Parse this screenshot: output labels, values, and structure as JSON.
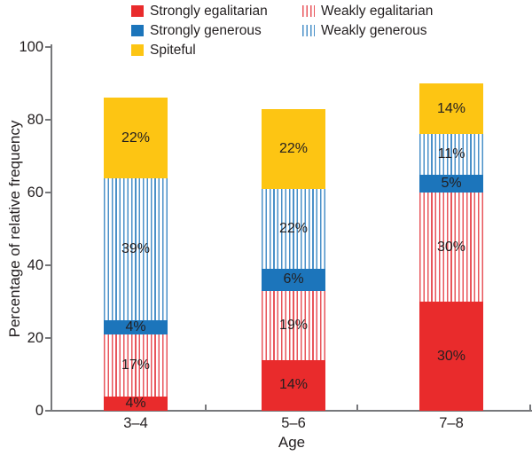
{
  "figure": {
    "ylabel": "Percentage of relative frequency",
    "xlabel": "Age"
  },
  "legend": {
    "items": [
      {
        "label": "Strongly egalitarian",
        "swatch": "solid-red"
      },
      {
        "label": "Weakly egalitarian",
        "swatch": "striped-red"
      },
      {
        "label": "Strongly generous",
        "swatch": "solid-blue"
      },
      {
        "label": "Weakly generous",
        "swatch": "striped-blue"
      },
      {
        "label": "Spiteful",
        "swatch": "solid-yellow"
      }
    ]
  },
  "chart_data": {
    "type": "bar",
    "subtype": "stacked-vertical",
    "title": "",
    "xlabel": "Age",
    "ylabel": "Percentage of relative frequency",
    "ylim": [
      0,
      100
    ],
    "yticks": [
      0,
      20,
      40,
      60,
      80,
      100
    ],
    "grid": false,
    "legend_position": "top",
    "categories": [
      "3–4",
      "5–6",
      "7–8"
    ],
    "series": [
      {
        "name": "Strongly egalitarian",
        "pattern": "solid",
        "color": "#e92b2c",
        "values": [
          4,
          14,
          30
        ]
      },
      {
        "name": "Weakly egalitarian",
        "pattern": "striped",
        "color": "#e92b2c",
        "values": [
          17,
          19,
          30
        ]
      },
      {
        "name": "Strongly generous",
        "pattern": "solid",
        "color": "#1c75bb",
        "values": [
          4,
          6,
          5
        ]
      },
      {
        "name": "Weakly generous",
        "pattern": "striped",
        "color": "#1c75bb",
        "values": [
          39,
          22,
          11
        ]
      },
      {
        "name": "Spiteful",
        "pattern": "solid",
        "color": "#fdc513",
        "values": [
          22,
          22,
          14
        ]
      }
    ],
    "bar_totals": [
      86,
      83,
      90
    ],
    "bar_label_format": "{value}%"
  },
  "colors": {
    "red": "#e92b2c",
    "blue": "#1c75bb",
    "yellow": "#fdc513",
    "red_stripe": "#e8555b",
    "blue_stripe": "#4a90c8",
    "axis": "#77787b",
    "text": "#231f20",
    "background": "#ffffff"
  }
}
